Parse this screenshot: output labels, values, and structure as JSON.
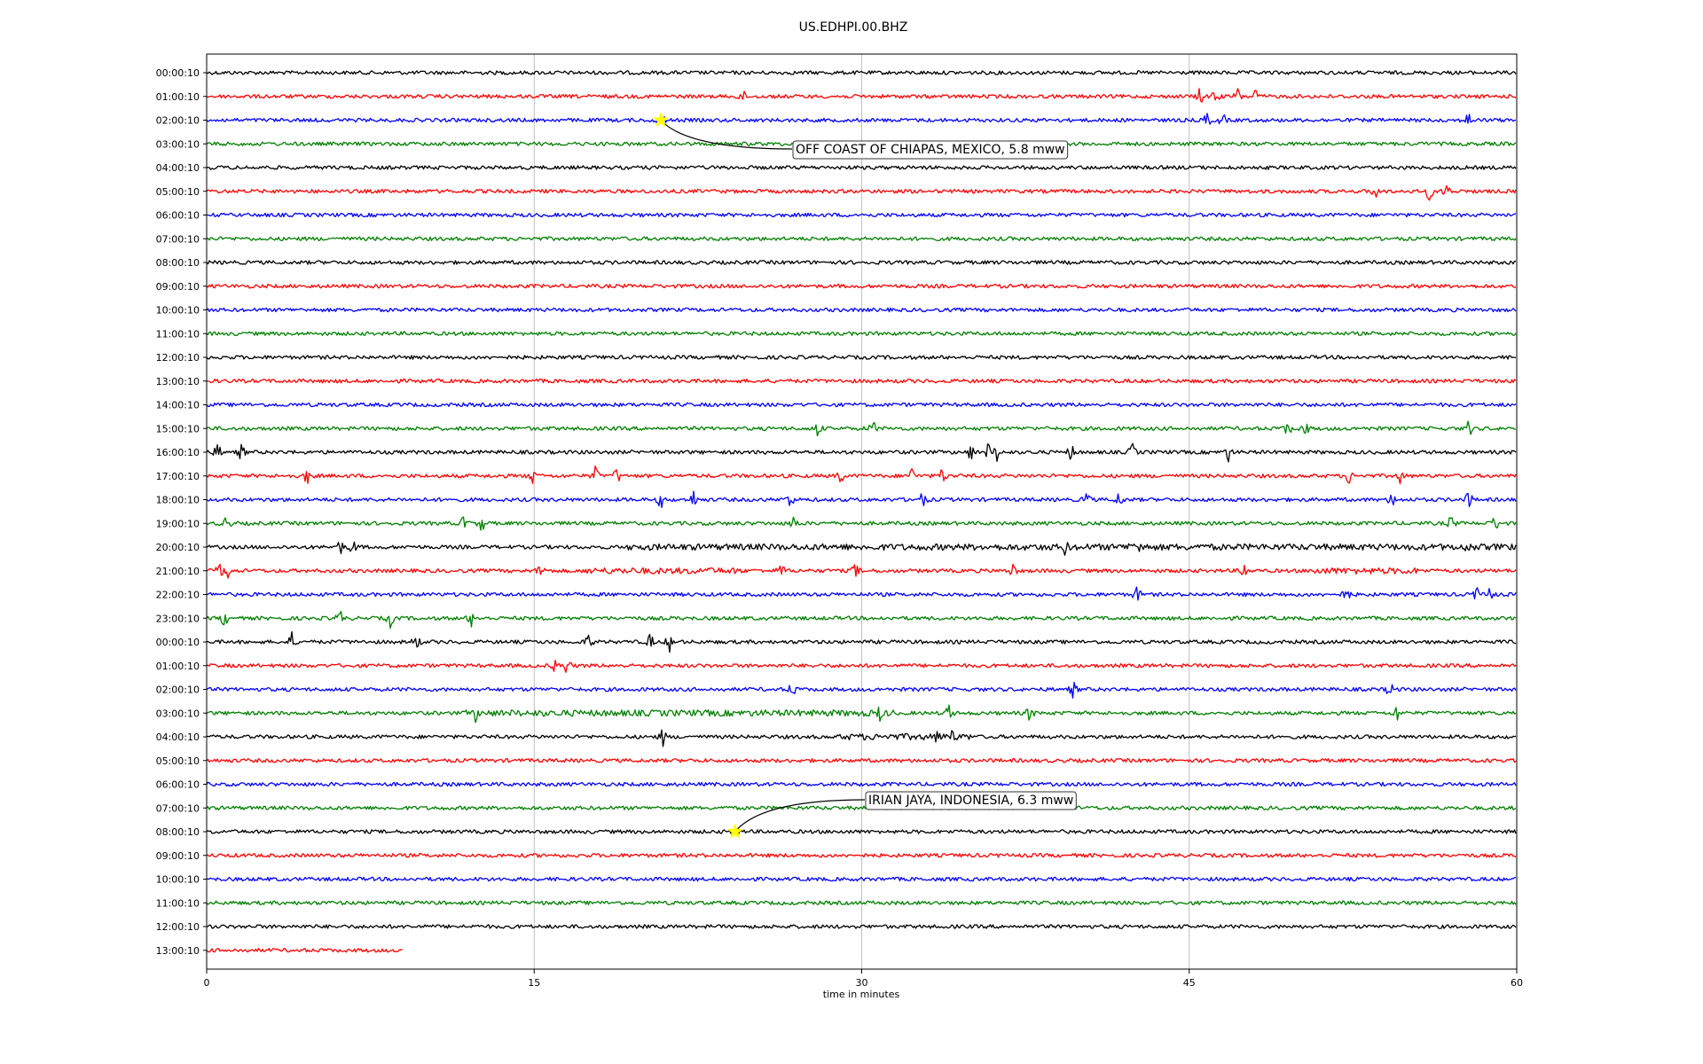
{
  "chart_data": {
    "type": "line",
    "title": "US.EDHPI.00.BHZ",
    "xlabel": "time in minutes",
    "ylabel": "",
    "xlim": [
      0,
      60
    ],
    "xticks": [
      "0",
      "15",
      "30",
      "45",
      "60"
    ],
    "xtick_values": [
      0,
      15,
      30,
      45,
      60
    ],
    "grid": "vertical",
    "row_labels": [
      "00:00:10",
      "01:00:10",
      "02:00:10",
      "03:00:10",
      "04:00:10",
      "05:00:10",
      "06:00:10",
      "07:00:10",
      "08:00:10",
      "09:00:10",
      "10:00:10",
      "11:00:10",
      "12:00:10",
      "13:00:10",
      "14:00:10",
      "15:00:10",
      "16:00:10",
      "17:00:10",
      "18:00:10",
      "19:00:10",
      "20:00:10",
      "21:00:10",
      "22:00:10",
      "23:00:10",
      "00:00:10",
      "01:00:10",
      "02:00:10",
      "03:00:10",
      "04:00:10",
      "05:00:10",
      "06:00:10",
      "07:00:10",
      "08:00:10",
      "09:00:10",
      "10:00:10",
      "11:00:10",
      "12:00:10",
      "13:00:10"
    ],
    "trace_colors": [
      "#000000",
      "#ff0000",
      "#0000ff",
      "#008000"
    ],
    "last_trace_end_minutes": 9,
    "bursts": [
      {
        "row": 1,
        "x": [
          24.5,
          45.5,
          46.2,
          47.2,
          48.0
        ]
      },
      {
        "row": 2,
        "x": [
          20.8,
          45.8,
          46.5,
          57.8
        ]
      },
      {
        "row": 5,
        "x": [
          53.5,
          56.0,
          56.8
        ]
      },
      {
        "row": 15,
        "x": [
          28.0,
          30.5,
          49.5,
          50.3,
          57.8
        ]
      },
      {
        "row": 16,
        "x": [
          0.5,
          1.6,
          35.0,
          35.8,
          36.2,
          39.6,
          42.4,
          46.8
        ]
      },
      {
        "row": 17,
        "x": [
          4.6,
          14.9,
          17.8,
          18.8,
          29.0,
          32.3,
          33.7,
          52.3,
          54.7
        ]
      },
      {
        "row": 18,
        "x": [
          20.8,
          22.3,
          26.7,
          32.8,
          40.3,
          41.8,
          54.3,
          57.8
        ]
      },
      {
        "row": 19,
        "x": [
          0.9,
          11.8,
          12.6,
          26.9,
          57.0,
          59.0
        ]
      },
      {
        "row": 20,
        "x": [
          6.1,
          6.7,
          39.3,
          42.3,
          42.8,
          57.8
        ]
      },
      {
        "row": 21,
        "x": [
          0.6,
          1.0,
          15.3,
          26.3,
          29.7,
          36.9,
          47.5
        ]
      },
      {
        "row": 22,
        "x": [
          42.6,
          52.2,
          58.2,
          58.8
        ]
      },
      {
        "row": 23,
        "x": [
          0.8,
          6.1,
          8.4,
          12.1
        ]
      },
      {
        "row": 24,
        "x": [
          3.9,
          9.6,
          17.5,
          20.3,
          21.2
        ]
      },
      {
        "row": 25,
        "x": [
          16.0,
          16.5
        ]
      },
      {
        "row": 26,
        "x": [
          26.8,
          39.7,
          54.2
        ]
      },
      {
        "row": 27,
        "x": [
          12.3,
          30.8,
          34.0,
          37.7,
          54.5
        ]
      },
      {
        "row": 28,
        "x": [
          20.9,
          33.5,
          34.1
        ]
      }
    ],
    "noisy_segments": [
      {
        "row": 20,
        "x": [
          19.3,
          60
        ]
      },
      {
        "row": 21,
        "x": [
          17.3,
          24.5
        ]
      },
      {
        "row": 21,
        "x": [
          50.5,
          55.5
        ]
      },
      {
        "row": 27,
        "x": [
          11.8,
          31.5
        ]
      },
      {
        "row": 28,
        "x": [
          29.0,
          35.0
        ]
      }
    ],
    "annotations": [
      {
        "text": "OFF COAST OF CHIAPAS, MEXICO, 5.8 mww",
        "row": 2,
        "x": 20.8
      },
      {
        "text": "IRIAN JAYA, INDONESIA, 6.3 mww",
        "row": 32,
        "x": 24.2
      }
    ],
    "marker_color": "#ffff00"
  }
}
